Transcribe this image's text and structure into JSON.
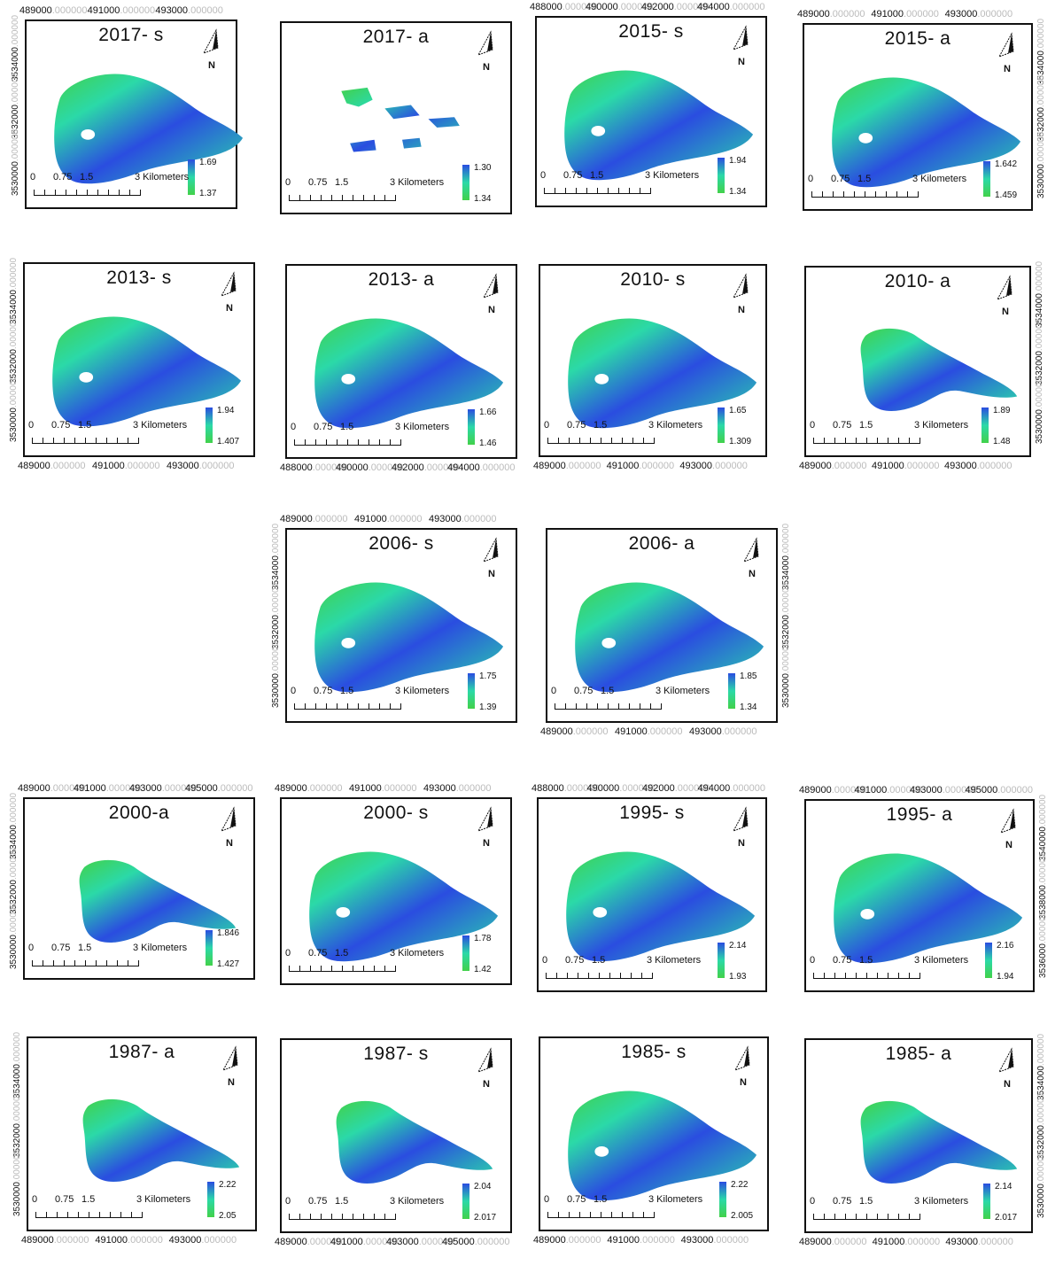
{
  "units": {
    "scale_label": "Kilometers",
    "scale_ticks": [
      "0",
      "0.75",
      "1.5",
      "3"
    ]
  },
  "colors": {
    "high": "#2a4de0",
    "mid": "#2bd9a8",
    "low": "#42d14a",
    "frame": "#111111"
  },
  "panels": [
    {
      "id": "p2017s",
      "title": "2017- s",
      "legend_high": "1.69",
      "legend_low": "1.37",
      "x_ticks": [
        "489000",
        "491000",
        "493000"
      ],
      "y_ticks": [
        "3534000",
        "3532000",
        "3530000"
      ],
      "shape": "full"
    },
    {
      "id": "p2017a",
      "title": "2017- a",
      "legend_high": "1.30",
      "legend_low": "1.34",
      "x_ticks": [],
      "y_ticks": [],
      "shape": "sparse"
    },
    {
      "id": "p2015s",
      "title": "2015- s",
      "legend_high": "1.94",
      "legend_low": "1.34",
      "x_ticks": [
        "488000",
        "490000",
        "492000",
        "494000"
      ],
      "y_ticks": [],
      "shape": "full"
    },
    {
      "id": "p2015a",
      "title": "2015- a",
      "legend_high": "1.642",
      "legend_low": "1.459",
      "x_ticks": [
        "489000",
        "491000",
        "493000"
      ],
      "y_ticks": [
        "3534000",
        "3532000",
        "3530000"
      ],
      "shape": "full"
    },
    {
      "id": "p2013s",
      "title": "2013- s",
      "legend_high": "1.94",
      "legend_low": "1.407",
      "x_ticks": [
        "489000",
        "491000",
        "493000"
      ],
      "y_ticks": [
        "3534000",
        "3532000",
        "3530000"
      ],
      "shape": "full"
    },
    {
      "id": "p2013a",
      "title": "2013- a",
      "legend_high": "1.66",
      "legend_low": "1.46",
      "x_ticks": [
        "488000",
        "490000",
        "492000",
        "494000"
      ],
      "y_ticks": [],
      "shape": "full"
    },
    {
      "id": "p2010s",
      "title": "2010- s",
      "legend_high": "1.65",
      "legend_low": "1.309",
      "x_ticks": [
        "489000",
        "491000",
        "493000"
      ],
      "y_ticks": [],
      "shape": "full"
    },
    {
      "id": "p2010a",
      "title": "2010- a",
      "legend_high": "1.89",
      "legend_low": "1.48",
      "x_ticks": [
        "489000",
        "491000",
        "493000"
      ],
      "y_ticks": [
        "3534000",
        "3532000",
        "3530000"
      ],
      "shape": "partial"
    },
    {
      "id": "p2006s",
      "title": "2006- s",
      "legend_high": "1.75",
      "legend_low": "1.39",
      "x_ticks": [
        "489000",
        "491000",
        "493000"
      ],
      "y_ticks": [
        "3534000",
        "3532000",
        "3530000"
      ],
      "shape": "full"
    },
    {
      "id": "p2006a",
      "title": "2006- a",
      "legend_high": "1.85",
      "legend_low": "1.34",
      "x_ticks": [
        "489000",
        "491000",
        "493000"
      ],
      "y_ticks": [
        "3534000",
        "3532000",
        "3530000"
      ],
      "shape": "full"
    },
    {
      "id": "p2000a",
      "title": "2000-a",
      "legend_high": "1.846",
      "legend_low": "1.427",
      "x_ticks": [
        "489000",
        "491000",
        "493000",
        "495000"
      ],
      "y_ticks": [
        "3534000",
        "3532000",
        "3530000"
      ],
      "shape": "partial"
    },
    {
      "id": "p2000s",
      "title": "2000- s",
      "legend_high": "1.78",
      "legend_low": "1.42",
      "x_ticks": [
        "489000",
        "491000",
        "493000"
      ],
      "y_ticks": [],
      "shape": "full"
    },
    {
      "id": "p1995s",
      "title": "1995- s",
      "legend_high": "2.14",
      "legend_low": "1.93",
      "x_ticks": [
        "488000",
        "490000",
        "492000",
        "494000"
      ],
      "y_ticks": [],
      "shape": "full"
    },
    {
      "id": "p1995a",
      "title": "1995- a",
      "legend_high": "2.16",
      "legend_low": "1.94",
      "x_ticks": [
        "489000",
        "491000",
        "493000",
        "495000"
      ],
      "y_ticks": [
        "3540000",
        "3538000",
        "3536000"
      ],
      "shape": "full"
    },
    {
      "id": "p1987a",
      "title": "1987- a",
      "legend_high": "2.22",
      "legend_low": "2.05",
      "x_ticks": [
        "489000",
        "491000",
        "493000"
      ],
      "y_ticks": [
        "3534000",
        "3532000",
        "3530000"
      ],
      "shape": "partial"
    },
    {
      "id": "p1987s",
      "title": "1987- s",
      "legend_high": "2.04",
      "legend_low": "2.017",
      "x_ticks": [
        "489000",
        "491000",
        "493000",
        "495000"
      ],
      "y_ticks": [],
      "shape": "partial"
    },
    {
      "id": "p1985s",
      "title": "1985- s",
      "legend_high": "2.22",
      "legend_low": "2.005",
      "x_ticks": [
        "489000",
        "491000",
        "493000"
      ],
      "y_ticks": [],
      "shape": "full"
    },
    {
      "id": "p1985a",
      "title": "1985- a",
      "legend_high": "2.14",
      "legend_low": "2.017",
      "x_ticks": [
        "489000",
        "491000",
        "493000"
      ],
      "y_ticks": [
        "3534000",
        "3532000",
        "3530000"
      ],
      "shape": "partial"
    }
  ]
}
